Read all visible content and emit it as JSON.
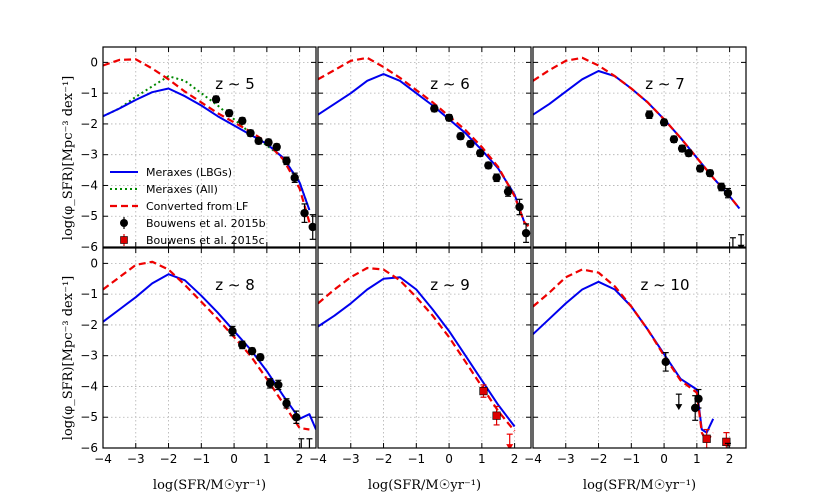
{
  "figure": {
    "ylabel": "log(φ_SFR)[Mpc⁻³ dex⁻¹]",
    "xlabel": "log(SFR/M☉yr⁻¹)",
    "colors": {
      "lbg": "#0000ee",
      "all": "#008800",
      "lf": "#ee0000",
      "b15b": "#000000",
      "b15c": "#dd0000"
    }
  },
  "legend": {
    "items": [
      {
        "label": "Meraxes (LBGs)",
        "style": "solid",
        "color": "#0000ee"
      },
      {
        "label": "Meraxes (All)",
        "style": "dotted",
        "color": "#008800"
      },
      {
        "label": "Converted from LF",
        "style": "dashed",
        "color": "#ee0000"
      },
      {
        "label": "Bouwens et al. 2015b",
        "style": "circle",
        "color": "#000000"
      },
      {
        "label": "Bouwens et al. 2015c",
        "style": "square",
        "color": "#dd0000"
      }
    ]
  },
  "chart_data": [
    {
      "type": "line",
      "title": "z ∼ 5",
      "xlim": [
        -4,
        2.5
      ],
      "ylim": [
        -6,
        0.5
      ],
      "xticks": [],
      "yticks": [
        "0",
        "−1",
        "−2",
        "−3",
        "−4",
        "−5",
        "−6"
      ],
      "series": [
        {
          "name": "Converted from LF",
          "style": "dashed",
          "x": [
            -4,
            -3.5,
            -3,
            -2.5,
            -2,
            -1.5,
            -1,
            -0.5,
            0,
            0.5,
            1,
            1.5,
            2,
            2.3
          ],
          "y": [
            -0.1,
            0.08,
            0.1,
            -0.2,
            -0.55,
            -0.95,
            -1.3,
            -1.65,
            -1.95,
            -2.25,
            -2.6,
            -3.15,
            -4.1,
            -5.2
          ]
        },
        {
          "name": "Meraxes (All)",
          "style": "dotted",
          "x": [
            -4,
            -3.5,
            -3,
            -2.5,
            -2,
            -1.5,
            -1,
            -0.5,
            0,
            0.5,
            1,
            1.5,
            2,
            2.3
          ],
          "y": [
            -1.75,
            -1.5,
            -1.12,
            -0.78,
            -0.45,
            -0.6,
            -1.0,
            -1.4,
            -1.85,
            -2.3,
            -2.7,
            -3.1,
            -3.9,
            -4.8
          ]
        },
        {
          "name": "Meraxes (LBGs)",
          "style": "solid",
          "x": [
            -4,
            -3.5,
            -3,
            -2.5,
            -2,
            -1.5,
            -1,
            -0.5,
            0,
            0.5,
            1,
            1.5,
            2,
            2.3
          ],
          "y": [
            -1.75,
            -1.5,
            -1.22,
            -0.97,
            -0.85,
            -1.1,
            -1.4,
            -1.75,
            -2.05,
            -2.35,
            -2.65,
            -3.1,
            -3.9,
            -4.8
          ]
        },
        {
          "name": "Bouwens et al. 2015b",
          "style": "circle",
          "x": [
            -0.55,
            -0.15,
            0.25,
            0.5,
            0.75,
            1.05,
            1.3,
            1.6,
            1.85,
            2.15,
            2.4
          ],
          "y": [
            -1.2,
            -1.65,
            -1.9,
            -2.3,
            -2.55,
            -2.6,
            -2.75,
            -3.2,
            -3.75,
            -4.9,
            -5.35
          ],
          "err": [
            0.1,
            0.1,
            0.1,
            0.1,
            0.1,
            0.1,
            0.1,
            0.12,
            0.15,
            0.3,
            0.4
          ]
        }
      ]
    },
    {
      "type": "line",
      "title": "z ∼ 6",
      "xlim": [
        -4,
        2.5
      ],
      "ylim": [
        -6,
        0.5
      ],
      "xticks": [],
      "yticks": [],
      "series": [
        {
          "name": "Converted from LF",
          "style": "dashed",
          "x": [
            -4,
            -3.5,
            -3,
            -2.5,
            -2,
            -1.5,
            -1,
            -0.5,
            0,
            0.5,
            1,
            1.5,
            2,
            2.3,
            2.6
          ],
          "y": [
            -0.55,
            -0.25,
            0.05,
            0.15,
            -0.15,
            -0.5,
            -0.9,
            -1.3,
            -1.75,
            -2.2,
            -2.75,
            -3.4,
            -4.35,
            -5.2,
            -5.5
          ]
        },
        {
          "name": "Meraxes (LBGs)",
          "style": "solid",
          "x": [
            -4,
            -3.5,
            -3,
            -2.5,
            -2,
            -1.5,
            -1,
            -0.5,
            0,
            0.5,
            1,
            1.5,
            2,
            2.3
          ],
          "y": [
            -1.7,
            -1.35,
            -1.0,
            -0.6,
            -0.38,
            -0.6,
            -1.0,
            -1.4,
            -1.85,
            -2.3,
            -2.85,
            -3.45,
            -4.3,
            -5.2
          ]
        },
        {
          "name": "Bouwens et al. 2015b",
          "style": "circle",
          "x": [
            -0.45,
            0,
            0.35,
            0.65,
            0.95,
            1.2,
            1.45,
            1.8,
            2.15,
            2.35
          ],
          "y": [
            -1.5,
            -1.8,
            -2.4,
            -2.65,
            -2.95,
            -3.35,
            -3.75,
            -4.2,
            -4.7,
            -5.55
          ],
          "err": [
            0.1,
            0.1,
            0.1,
            0.1,
            0.1,
            0.1,
            0.12,
            0.15,
            0.25,
            0.3
          ]
        }
      ]
    },
    {
      "type": "line",
      "title": "z ∼ 7",
      "xlim": [
        -4,
        2.5
      ],
      "ylim": [
        -6,
        0.5
      ],
      "xticks": [],
      "yticks": [],
      "series": [
        {
          "name": "Converted from LF",
          "style": "dashed",
          "x": [
            -4,
            -3.5,
            -3,
            -2.5,
            -2,
            -1.5,
            -1,
            -0.5,
            0,
            0.5,
            1,
            1.5,
            2,
            2.3
          ],
          "y": [
            -0.6,
            -0.25,
            0.05,
            0.15,
            -0.1,
            -0.45,
            -0.85,
            -1.3,
            -1.85,
            -2.45,
            -3.1,
            -3.75,
            -4.35,
            -4.75
          ]
        },
        {
          "name": "Meraxes (LBGs)",
          "style": "solid",
          "x": [
            -4,
            -3.5,
            -3,
            -2.5,
            -2,
            -1.5,
            -1,
            -0.5,
            0,
            0.5,
            1,
            1.5,
            2,
            2.3
          ],
          "y": [
            -1.7,
            -1.35,
            -0.95,
            -0.55,
            -0.28,
            -0.45,
            -0.85,
            -1.3,
            -1.85,
            -2.45,
            -3.1,
            -3.75,
            -4.35,
            -4.75
          ]
        },
        {
          "name": "Bouwens et al. 2015b",
          "style": "circle",
          "x": [
            -0.45,
            0,
            0.3,
            0.55,
            0.75,
            1.1,
            1.4,
            1.75,
            1.95
          ],
          "y": [
            -1.7,
            -1.95,
            -2.5,
            -2.8,
            -2.95,
            -3.45,
            -3.6,
            -4.05,
            -4.25
          ],
          "err": [
            0.12,
            0.1,
            0.1,
            0.1,
            0.1,
            0.1,
            0.1,
            0.12,
            0.15
          ]
        }
      ],
      "upper_limits": [
        {
          "x": 2.1,
          "y": -5.7
        },
        {
          "x": 2.35,
          "y": -5.6
        }
      ]
    },
    {
      "type": "line",
      "title": "z ∼ 8",
      "xlim": [
        -4,
        2.5
      ],
      "ylim": [
        -6,
        0.5
      ],
      "xticks": [
        "−4",
        "−3",
        "−2",
        "−1",
        "0",
        "1",
        "2"
      ],
      "yticks": [
        "0",
        "−1",
        "−2",
        "−3",
        "−4",
        "−5",
        "−6"
      ],
      "series": [
        {
          "name": "Converted from LF",
          "style": "dashed",
          "x": [
            -4,
            -3.5,
            -3,
            -2.5,
            -2,
            -1.5,
            -1,
            -0.5,
            0,
            0.5,
            1,
            1.5,
            2,
            2.3
          ],
          "y": [
            -0.85,
            -0.45,
            -0.05,
            0.05,
            -0.2,
            -0.7,
            -1.25,
            -1.8,
            -2.4,
            -3.0,
            -3.75,
            -4.55,
            -5.35,
            -5.4
          ]
        },
        {
          "name": "Meraxes (LBGs)",
          "style": "solid",
          "x": [
            -4,
            -3.5,
            -3,
            -2.5,
            -2,
            -1.5,
            -1,
            -0.5,
            0,
            0.5,
            1,
            1.5,
            2,
            2.3,
            2.5
          ],
          "y": [
            -1.9,
            -1.5,
            -1.1,
            -0.65,
            -0.35,
            -0.55,
            -1.05,
            -1.6,
            -2.2,
            -2.8,
            -3.5,
            -4.3,
            -5.05,
            -4.9,
            -5.4
          ]
        },
        {
          "name": "Bouwens et al. 2015b",
          "style": "circle",
          "x": [
            -0.05,
            0.25,
            0.55,
            0.8,
            1.1,
            1.35,
            1.6,
            1.9
          ],
          "y": [
            -2.2,
            -2.65,
            -2.85,
            -3.05,
            -3.9,
            -3.95,
            -4.55,
            -5.0
          ],
          "err": [
            0.15,
            0.12,
            0.1,
            0.1,
            0.15,
            0.15,
            0.15,
            0.2
          ]
        }
      ],
      "upper_limits": [
        {
          "x": 2.05,
          "y": -5.7
        },
        {
          "x": 2.3,
          "y": -5.7
        }
      ]
    },
    {
      "type": "line",
      "title": "z ∼ 9",
      "xlim": [
        -4,
        2.5
      ],
      "ylim": [
        -6,
        0.5
      ],
      "xticks": [
        "−4",
        "−3",
        "−2",
        "−1",
        "0",
        "1",
        "2"
      ],
      "yticks": [],
      "series": [
        {
          "name": "Converted from LF",
          "style": "dashed",
          "x": [
            -4,
            -3.5,
            -3,
            -2.5,
            -2,
            -1.5,
            -1,
            -0.5,
            0,
            0.5,
            1,
            1.5,
            2
          ],
          "y": [
            -1.3,
            -0.85,
            -0.45,
            -0.15,
            -0.2,
            -0.55,
            -1.1,
            -1.7,
            -2.4,
            -3.2,
            -4.0,
            -4.8,
            -5.45
          ]
        },
        {
          "name": "Meraxes (LBGs)",
          "style": "solid",
          "x": [
            -4,
            -3.5,
            -3,
            -2.5,
            -2,
            -1.5,
            -1,
            -0.5,
            0,
            0.5,
            1,
            1.5,
            2
          ],
          "y": [
            -2.05,
            -1.7,
            -1.3,
            -0.85,
            -0.5,
            -0.45,
            -0.85,
            -1.5,
            -2.2,
            -3.0,
            -3.8,
            -4.6,
            -5.3
          ]
        },
        {
          "name": "Bouwens et al. 2015c",
          "style": "square",
          "x": [
            1.05,
            1.45
          ],
          "y": [
            -4.15,
            -4.95
          ],
          "err": [
            0.2,
            0.3
          ]
        }
      ],
      "upper_limits": [
        {
          "x": 1.85,
          "y": -5.55
        }
      ]
    },
    {
      "type": "line",
      "title": "z ∼ 10",
      "xlim": [
        -4,
        2.5
      ],
      "ylim": [
        -6,
        0.5
      ],
      "xticks": [
        "−4",
        "−3",
        "−2",
        "−1",
        "0",
        "1",
        "2"
      ],
      "yticks": [],
      "series": [
        {
          "name": "Converted from LF",
          "style": "dashed",
          "x": [
            -4,
            -3.5,
            -3,
            -2.5,
            -2,
            -1.5,
            -1,
            -0.5,
            0,
            0.5,
            1,
            1.15,
            1.3,
            1.5
          ],
          "y": [
            -1.4,
            -0.95,
            -0.45,
            -0.2,
            -0.3,
            -0.75,
            -1.4,
            -2.15,
            -3.0,
            -3.8,
            -4.2,
            -5.5,
            -5.8,
            -5.5
          ]
        },
        {
          "name": "Meraxes (LBGs)",
          "style": "solid",
          "x": [
            -4,
            -3.5,
            -3,
            -2.5,
            -2,
            -1.5,
            -1,
            -0.5,
            0,
            0.5,
            1,
            1.15,
            1.3,
            1.5
          ],
          "y": [
            -2.3,
            -1.8,
            -1.3,
            -0.85,
            -0.6,
            -0.85,
            -1.4,
            -2.15,
            -2.95,
            -3.75,
            -4.1,
            -5.4,
            -5.5,
            -5.05
          ]
        },
        {
          "name": "Bouwens et al. 2015b",
          "style": "circle",
          "x": [
            0.05,
            0.95,
            1.05
          ],
          "y": [
            -3.2,
            -4.7,
            -4.4
          ],
          "err": [
            0.3,
            0.4,
            0.3
          ]
        },
        {
          "name": "Bouwens et al. 2015c",
          "style": "square",
          "x": [
            1.3,
            1.9
          ],
          "y": [
            -5.7,
            -5.8
          ],
          "err": [
            0.3,
            0.3
          ]
        }
      ],
      "upper_limits": [
        {
          "x": 0.45,
          "y": -4.25
        },
        {
          "x": 1.95,
          "y": -5.85
        }
      ]
    }
  ]
}
